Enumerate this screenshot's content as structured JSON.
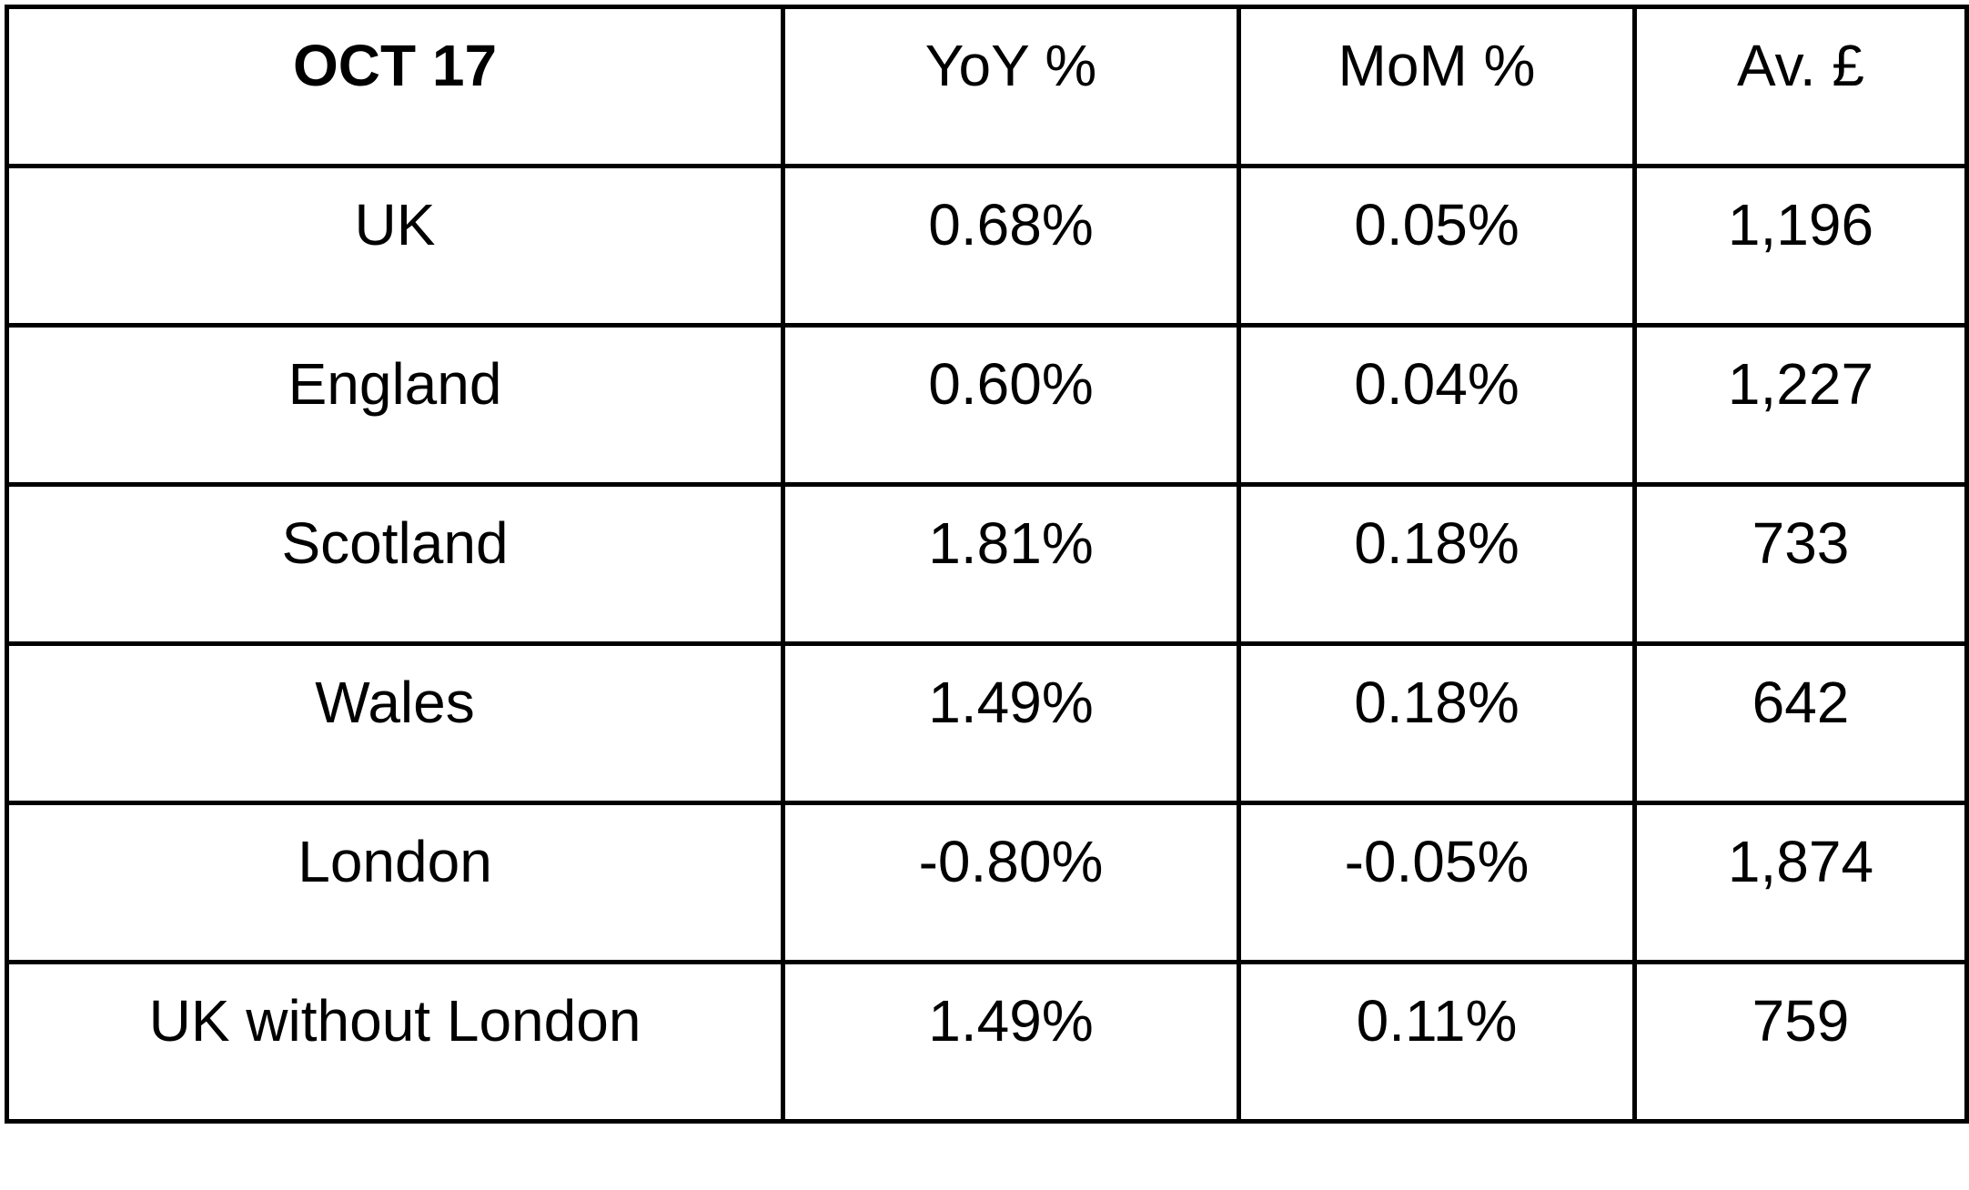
{
  "table": {
    "header": [
      "OCT 17",
      "YoY %",
      "MoM %",
      "Av. £"
    ],
    "rows": [
      [
        "UK",
        "0.68%",
        "0.05%",
        "1,196"
      ],
      [
        "England",
        "0.60%",
        "0.04%",
        "1,227"
      ],
      [
        "Scotland",
        "1.81%",
        "0.18%",
        "733"
      ],
      [
        "Wales",
        "1.49%",
        "0.18%",
        "642"
      ],
      [
        "London",
        "-0.80%",
        "-0.05%",
        "1,874"
      ],
      [
        "UK without London",
        "1.49%",
        "0.11%",
        "759"
      ]
    ]
  }
}
